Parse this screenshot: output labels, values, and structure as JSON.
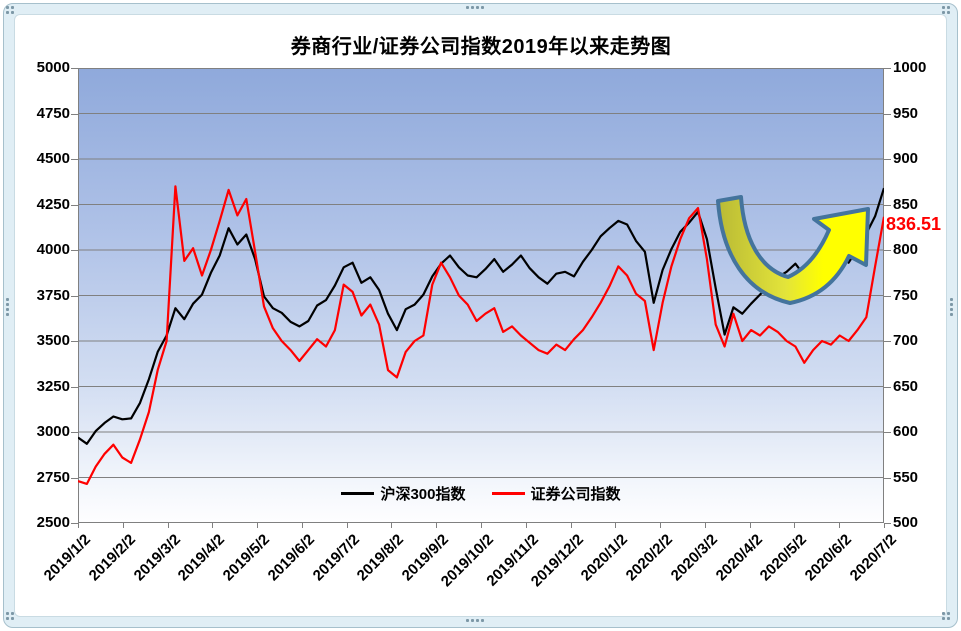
{
  "chart_data": {
    "type": "line",
    "title": "券商行业/证券公司指数2019年以来走势图",
    "x_labels": [
      "2019/1/2",
      "2019/2/2",
      "2019/3/2",
      "2019/4/2",
      "2019/5/2",
      "2019/6/2",
      "2019/7/2",
      "2019/8/2",
      "2019/9/2",
      "2019/10/2",
      "2019/11/2",
      "2019/12/2",
      "2020/1/2",
      "2020/2/2",
      "2020/3/2",
      "2020/4/2",
      "2020/5/2",
      "2020/6/2",
      "2020/7/2"
    ],
    "left_axis": {
      "min": 2500,
      "max": 5000,
      "step": 250,
      "tick_labels": [
        "5000",
        "4750",
        "4500",
        "4250",
        "4000",
        "3750",
        "3500",
        "3250",
        "3000",
        "2750",
        "2500"
      ]
    },
    "right_axis": {
      "min": 500,
      "max": 1000,
      "step": 50,
      "tick_labels": [
        "1000",
        "950",
        "900",
        "850",
        "800",
        "750",
        "700",
        "650",
        "600",
        "550",
        "500"
      ]
    },
    "grid": "horizontal",
    "legend_position": "inside-bottom-center",
    "series": [
      {
        "name": "沪深300指数",
        "color": "#000000",
        "axis": "left",
        "values": [
          2970,
          2935,
          3005,
          3050,
          3085,
          3070,
          3075,
          3160,
          3290,
          3440,
          3530,
          3680,
          3620,
          3705,
          3755,
          3875,
          3970,
          4120,
          4030,
          4085,
          3950,
          3745,
          3680,
          3655,
          3605,
          3580,
          3610,
          3695,
          3725,
          3805,
          3905,
          3930,
          3820,
          3850,
          3780,
          3650,
          3560,
          3675,
          3700,
          3755,
          3855,
          3925,
          3970,
          3905,
          3860,
          3850,
          3895,
          3950,
          3880,
          3920,
          3970,
          3900,
          3850,
          3815,
          3870,
          3880,
          3855,
          3935,
          4000,
          4075,
          4120,
          4160,
          4140,
          4050,
          3990,
          3710,
          3890,
          4005,
          4100,
          4150,
          4210,
          4060,
          3790,
          3535,
          3685,
          3650,
          3705,
          3755,
          3800,
          3850,
          3880,
          3925,
          3860,
          3825,
          3880,
          3920,
          3985,
          3930,
          4005,
          4090,
          4185,
          4340
        ]
      },
      {
        "name": "证券公司指数",
        "color": "#FF0000",
        "axis": "right",
        "values": [
          546,
          543,
          562,
          576,
          586,
          572,
          566,
          592,
          622,
          668,
          700,
          870,
          788,
          802,
          772,
          800,
          832,
          866,
          838,
          856,
          798,
          738,
          714,
          700,
          690,
          678,
          690,
          702,
          694,
          712,
          762,
          754,
          728,
          740,
          718,
          668,
          660,
          688,
          700,
          706,
          762,
          786,
          770,
          750,
          740,
          722,
          730,
          736,
          710,
          716,
          706,
          698,
          690,
          686,
          696,
          690,
          702,
          712,
          726,
          742,
          760,
          782,
          772,
          752,
          744,
          690,
          742,
          782,
          812,
          835,
          846,
          790,
          718,
          694,
          730,
          700,
          712,
          706,
          716,
          710,
          700,
          694,
          676,
          690,
          700,
          696,
          706,
          700,
          712,
          726,
          782,
          836.51
        ]
      }
    ],
    "annotation": {
      "arrow": {
        "shape": "u-turn-up-arrow",
        "fill": "#FFFF00",
        "fill_dark": "#B9BA35",
        "outline": "#44749D"
      },
      "data_label": {
        "text": "836.51",
        "color": "#FF0000"
      }
    },
    "colors": {
      "plot_top": "#8FA9DB",
      "plot_bottom": "#FFFFFF",
      "gridline": "#808080",
      "frame": "#E0EEF5"
    }
  }
}
